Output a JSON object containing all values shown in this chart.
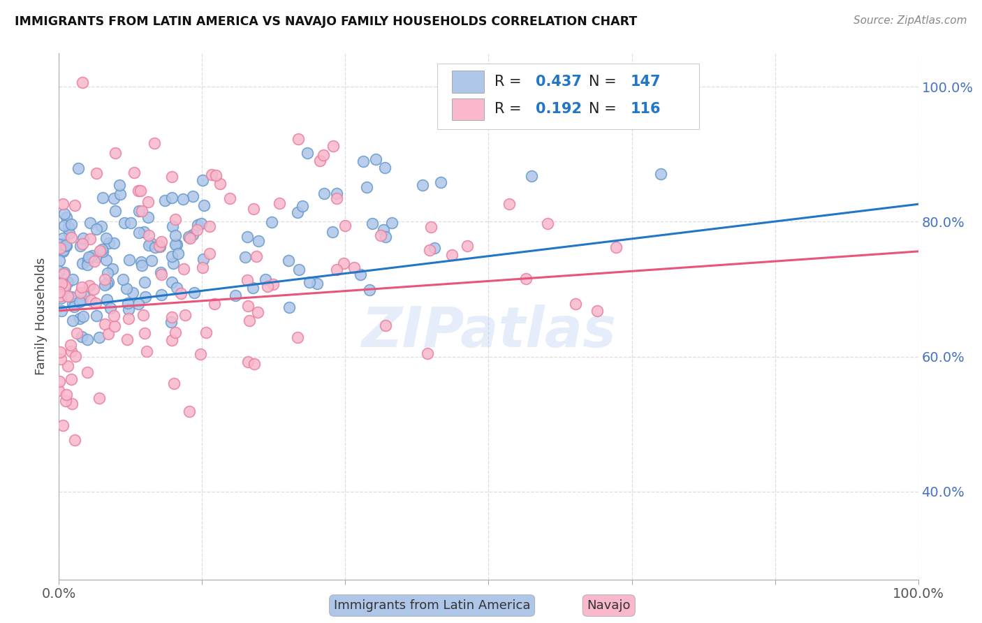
{
  "title": "IMMIGRANTS FROM LATIN AMERICA VS NAVAJO FAMILY HOUSEHOLDS CORRELATION CHART",
  "source": "Source: ZipAtlas.com",
  "ylabel": "Family Households",
  "ytick_labels": [
    "40.0%",
    "60.0%",
    "80.0%",
    "100.0%"
  ],
  "ytick_values": [
    0.4,
    0.6,
    0.8,
    1.0
  ],
  "xlim": [
    0.0,
    1.0
  ],
  "ylim": [
    0.27,
    1.05
  ],
  "legend_R_blue": "0.437",
  "legend_N_blue": "147",
  "legend_R_pink": "0.192",
  "legend_N_pink": "116",
  "blue_line_x0": 0.0,
  "blue_line_y0": 0.672,
  "blue_line_x1": 1.0,
  "blue_line_y1": 0.826,
  "pink_line_x0": 0.0,
  "pink_line_y0": 0.668,
  "pink_line_x1": 1.0,
  "pink_line_y1": 0.756,
  "scatter_blue_face": "#aec6e8",
  "scatter_blue_edge": "#6699cc",
  "scatter_pink_face": "#f9b8cc",
  "scatter_pink_edge": "#e87fa0",
  "line_blue_color": "#2176c7",
  "line_pink_color": "#e8547a",
  "watermark": "ZIPatlas",
  "background_color": "#ffffff",
  "grid_color": "#dddddd",
  "ytick_color": "#4472c4",
  "xtick_color": "#555555",
  "title_color": "#111111",
  "source_color": "#888888",
  "ylabel_color": "#444444"
}
